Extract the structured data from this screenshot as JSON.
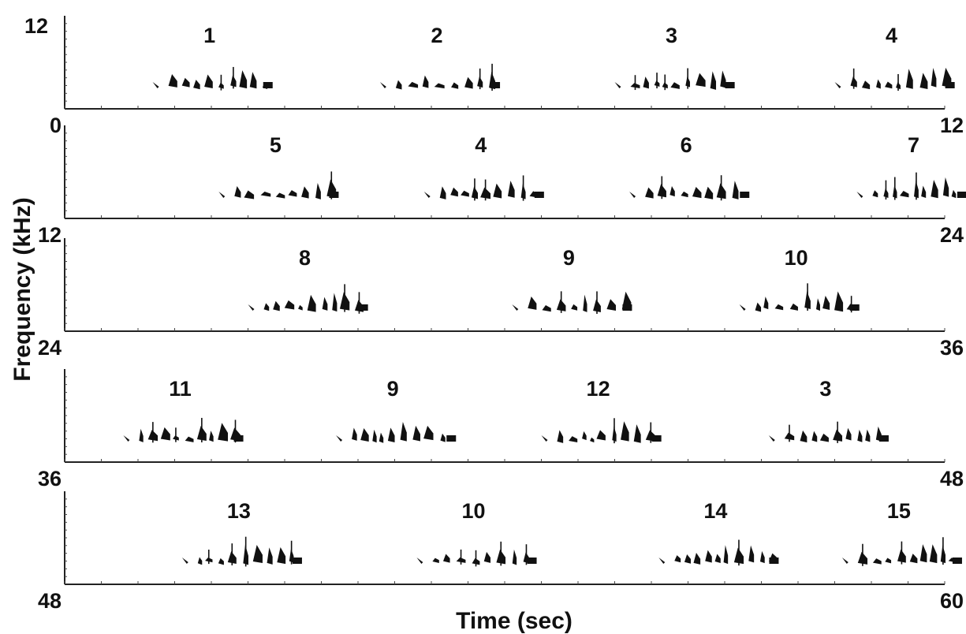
{
  "chart_data": {
    "type": "spectrogram",
    "ylabel": "Frequency (kHz)",
    "xlabel": "Time (sec)",
    "y_top_label": "12",
    "rows": [
      {
        "start": 0,
        "end": 12,
        "start_label": "0",
        "end_label": "12",
        "phrases": [
          {
            "label": "1",
            "time": 1.2
          },
          {
            "label": "2",
            "time": 4.3
          },
          {
            "label": "3",
            "time": 7.5
          },
          {
            "label": "4",
            "time": 10.5
          }
        ]
      },
      {
        "start": 12,
        "end": 24,
        "start_label": "12",
        "end_label": "24",
        "phrases": [
          {
            "label": "5",
            "time": 14.1
          },
          {
            "label": "4",
            "time": 16.9
          },
          {
            "label": "6",
            "time": 19.7
          },
          {
            "label": "7",
            "time": 22.8
          }
        ]
      },
      {
        "start": 24,
        "end": 36,
        "start_label": "24",
        "end_label": "36",
        "phrases": [
          {
            "label": "8",
            "time": 26.5
          },
          {
            "label": "9",
            "time": 30.1
          },
          {
            "label": "10",
            "time": 33.2
          }
        ]
      },
      {
        "start": 36,
        "end": 48,
        "start_label": "36",
        "end_label": "48",
        "phrases": [
          {
            "label": "11",
            "time": 36.8
          },
          {
            "label": "9",
            "time": 39.7
          },
          {
            "label": "12",
            "time": 42.5
          },
          {
            "label": "3",
            "time": 45.6
          }
        ]
      },
      {
        "start": 48,
        "end": 60,
        "start_label": "48",
        "end_label": "60",
        "phrases": [
          {
            "label": "13",
            "time": 49.6
          },
          {
            "label": "10",
            "time": 52.8
          },
          {
            "label": "14",
            "time": 56.1
          },
          {
            "label": "15",
            "time": 58.6
          }
        ]
      }
    ]
  }
}
